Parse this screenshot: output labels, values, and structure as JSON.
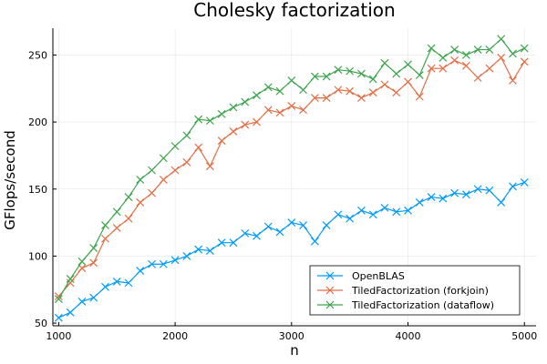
{
  "chart_data": {
    "type": "line",
    "title": "Cholesky factorization",
    "xlabel": "n",
    "ylabel": "GFlops/second",
    "xlim": [
      950,
      5100
    ],
    "ylim": [
      48,
      270
    ],
    "xticks": [
      1000,
      2000,
      3000,
      4000,
      5000
    ],
    "yticks": [
      50,
      100,
      150,
      200,
      250
    ],
    "grid": true,
    "legend_position": "bottom-right",
    "marker": "x",
    "x": [
      1000,
      1100,
      1200,
      1300,
      1400,
      1500,
      1600,
      1700,
      1800,
      1900,
      2000,
      2100,
      2200,
      2300,
      2400,
      2500,
      2600,
      2700,
      2800,
      2900,
      3000,
      3100,
      3200,
      3300,
      3400,
      3500,
      3600,
      3700,
      3800,
      3900,
      4000,
      4100,
      4200,
      4300,
      4400,
      4500,
      4600,
      4700,
      4800,
      4900,
      5000
    ],
    "series": [
      {
        "name": "OpenBLAS",
        "color": "#009af9",
        "values": [
          54,
          58,
          66,
          69,
          77,
          81,
          80,
          89,
          94,
          94,
          97,
          100,
          105,
          104,
          110,
          110,
          117,
          115,
          122,
          118,
          125,
          123,
          111,
          123,
          131,
          128,
          134,
          131,
          136,
          133,
          134,
          140,
          144,
          143,
          147,
          146,
          150,
          149,
          140,
          152,
          155
        ]
      },
      {
        "name": "TiledFactorization (forkjoin)",
        "color": "#e26f46",
        "values": [
          70,
          80,
          91,
          95,
          113,
          121,
          128,
          140,
          147,
          157,
          164,
          170,
          181,
          167,
          186,
          193,
          198,
          200,
          209,
          207,
          212,
          209,
          218,
          218,
          224,
          223,
          218,
          222,
          228,
          222,
          230,
          219,
          240,
          240,
          246,
          242,
          233,
          240,
          248,
          231,
          245
        ]
      },
      {
        "name": "TiledFactorization (dataflow)",
        "color": "#3da44d",
        "values": [
          68,
          83,
          96,
          106,
          123,
          133,
          144,
          157,
          164,
          173,
          182,
          190,
          202,
          201,
          206,
          211,
          215,
          220,
          226,
          223,
          231,
          224,
          234,
          234,
          239,
          238,
          236,
          232,
          244,
          236,
          243,
          235,
          255,
          248,
          254,
          250,
          254,
          254,
          262,
          251,
          255
        ]
      }
    ]
  }
}
